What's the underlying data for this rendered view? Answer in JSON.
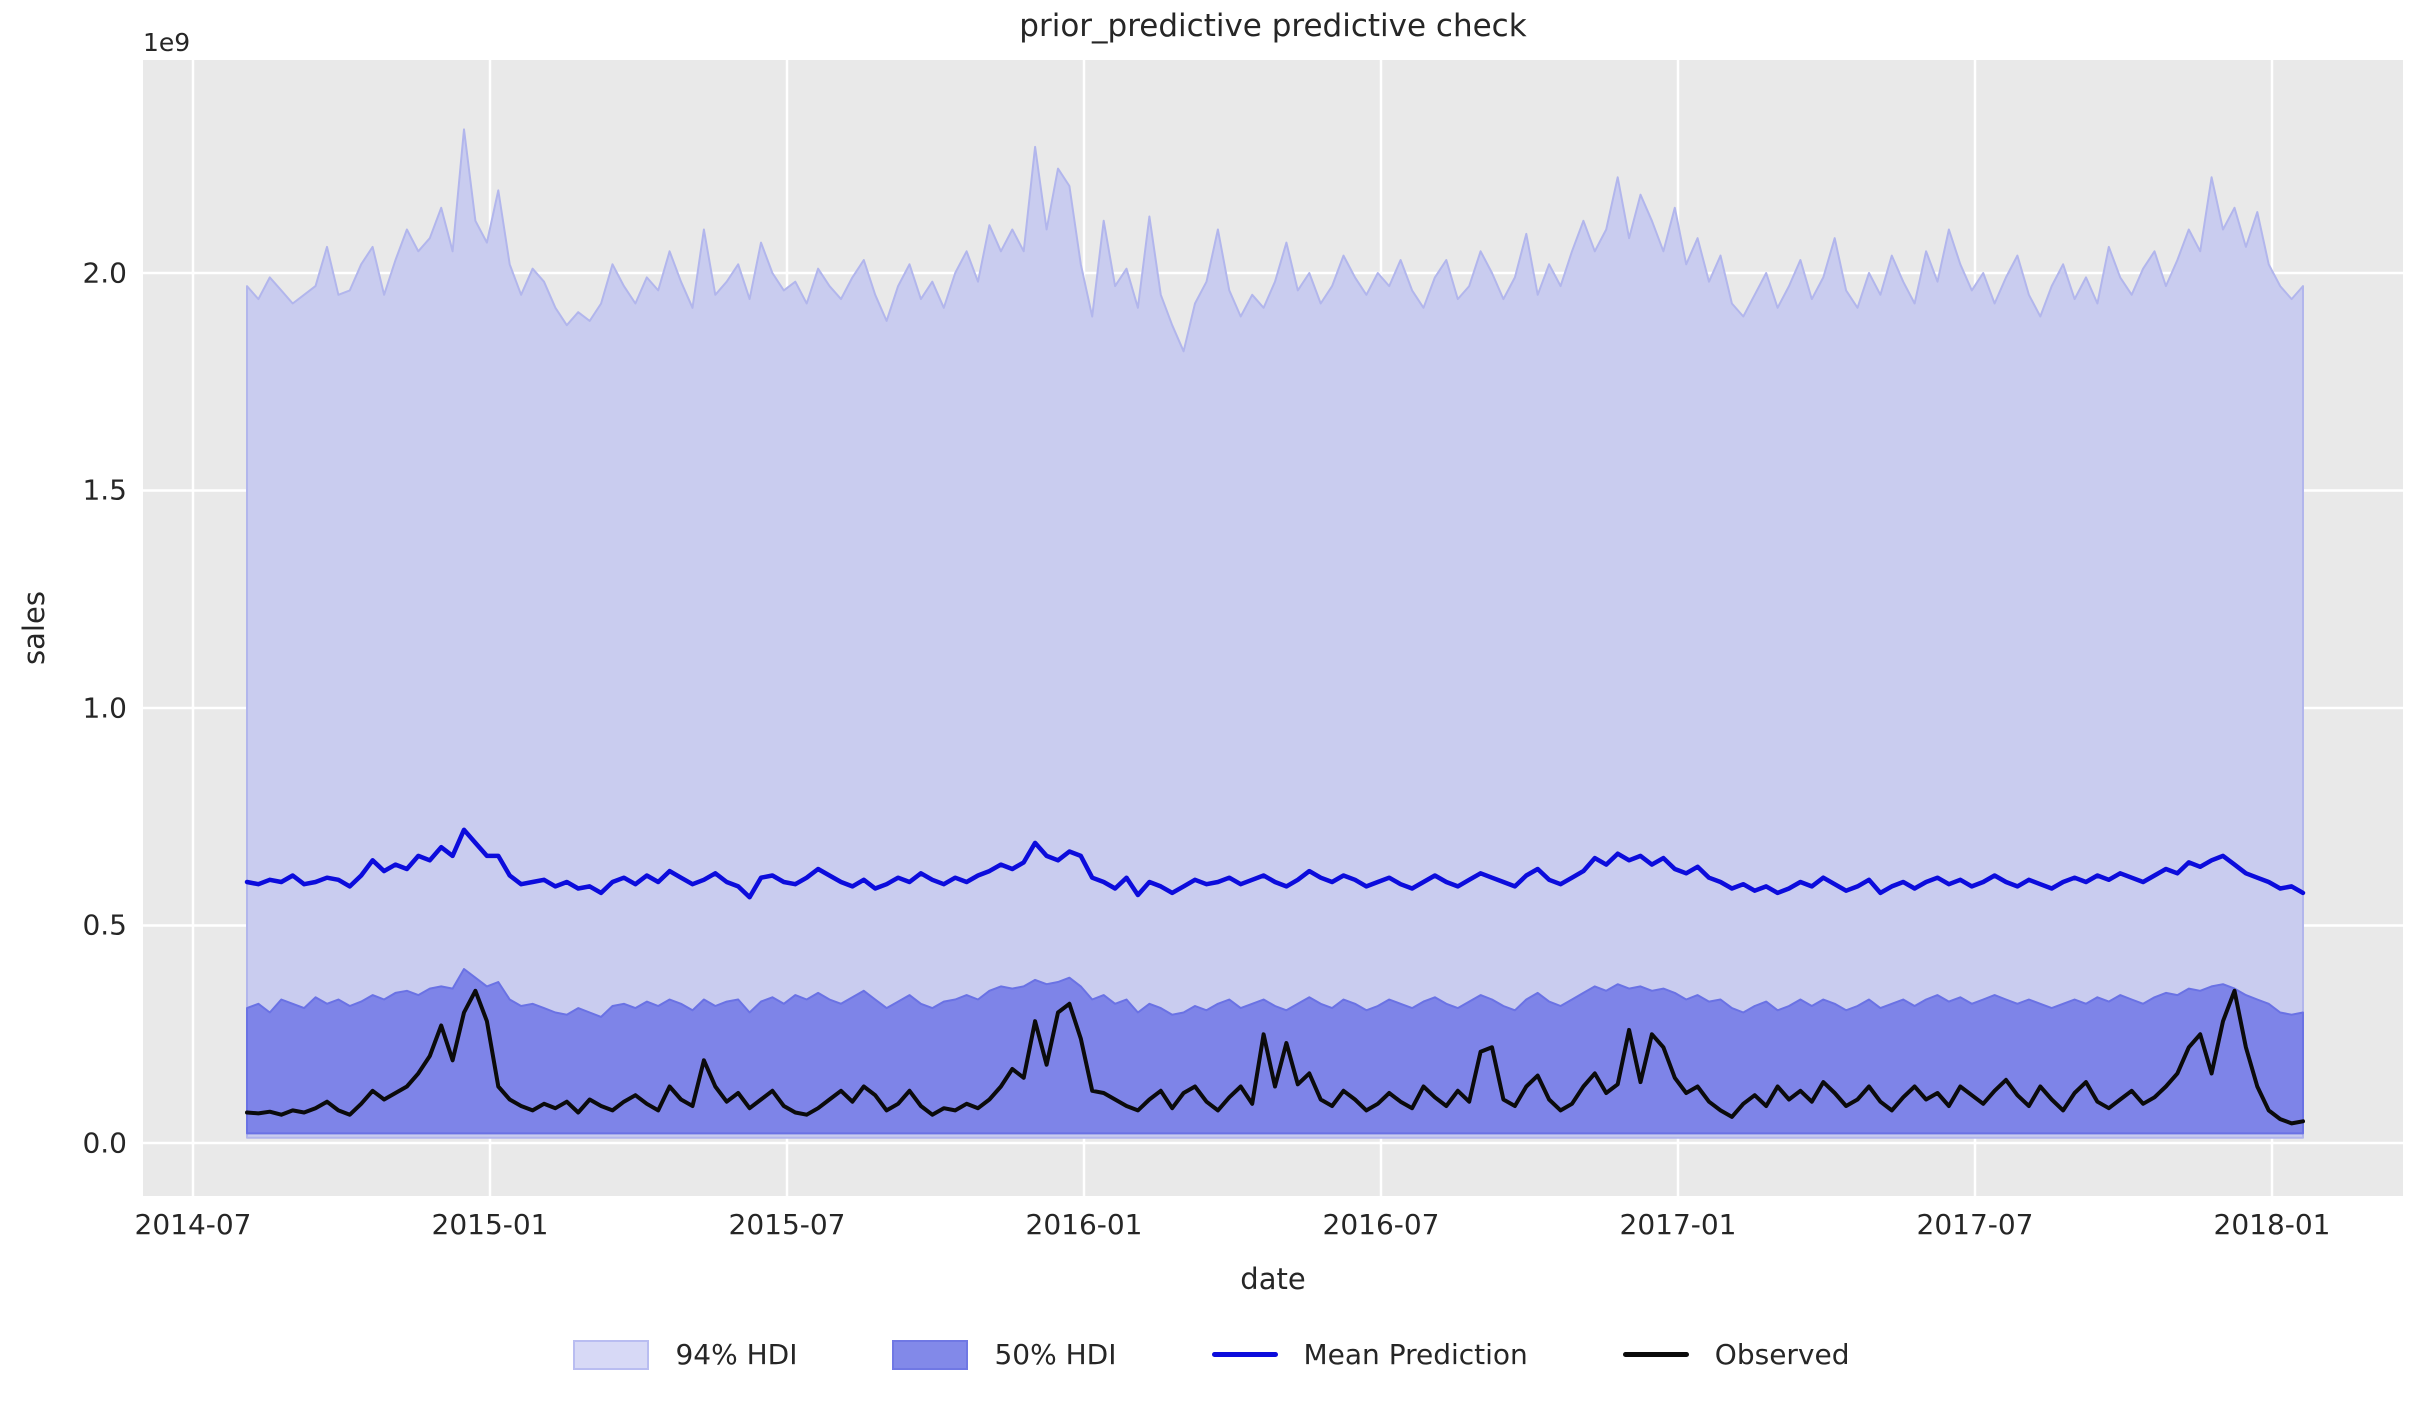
{
  "title": "prior_predictive predictive check",
  "axes": {
    "xlabel": "date",
    "ylabel": "sales",
    "offset_text": "1e9",
    "x_ticks": [
      "2014-07",
      "2015-01",
      "2015-07",
      "2016-01",
      "2016-07",
      "2017-01",
      "2017-07",
      "2018-01"
    ],
    "y_ticks": [
      "0.0",
      "0.5",
      "1.0",
      "1.5",
      "2.0"
    ]
  },
  "legend": {
    "items": [
      {
        "label": "94% HDI",
        "type": "patch",
        "fill": "#d7d9f6",
        "edge": "#b9bdf1"
      },
      {
        "label": "50% HDI",
        "type": "patch",
        "fill": "#8289e9",
        "edge": "#7078e4"
      },
      {
        "label": "Mean Prediction",
        "type": "line",
        "color": "#0c0cdc"
      },
      {
        "label": "Observed",
        "type": "line",
        "color": "#0b0b0b"
      }
    ]
  },
  "colors": {
    "figure_bg": "#ffffff",
    "axes_bg": "#e9e9e9",
    "grid": "#ffffff",
    "hdi94_fill": "#c9ccef",
    "hdi94_edge": "#b2b6ec",
    "hdi50_fill": "#7e84e8",
    "hdi50_edge": "#6a72e4",
    "mean_line": "#0c0cdc",
    "observed_line": "#0b0b0b",
    "text": "#262626"
  },
  "chart_data": {
    "type": "area",
    "title": "prior_predictive predictive check",
    "xlabel": "date",
    "ylabel": "sales",
    "y_unit": "1e9",
    "y_scale_note": "all y values below are in units of 1e9 (billions)",
    "ylim": [
      -0.12,
      2.49
    ],
    "y_tick_values": [
      0.0,
      0.5,
      1.0,
      1.5,
      2.0
    ],
    "x_tick_labels": [
      "2014-07",
      "2015-01",
      "2015-07",
      "2016-01",
      "2016-07",
      "2017-01",
      "2017-07",
      "2018-01"
    ],
    "x_start_date": "2014-08-03",
    "x_step_days": 7,
    "n_points": 181,
    "x_end_date": "2018-01-14",
    "legend_position": "bottom center",
    "grid": true,
    "series": [
      {
        "name": "94% HDI",
        "type": "band",
        "lower_constant": 0.012,
        "upper": [
          1.97,
          1.94,
          1.99,
          1.96,
          1.93,
          1.95,
          1.97,
          2.06,
          1.95,
          1.96,
          2.02,
          2.06,
          1.95,
          2.03,
          2.1,
          2.05,
          2.08,
          2.15,
          2.05,
          2.33,
          2.12,
          2.07,
          2.19,
          2.02,
          1.95,
          2.01,
          1.98,
          1.92,
          1.88,
          1.91,
          1.89,
          1.93,
          2.02,
          1.97,
          1.93,
          1.99,
          1.96,
          2.05,
          1.98,
          1.92,
          2.1,
          1.95,
          1.98,
          2.02,
          1.94,
          2.07,
          2.0,
          1.96,
          1.98,
          1.93,
          2.01,
          1.97,
          1.94,
          1.99,
          2.03,
          1.95,
          1.89,
          1.97,
          2.02,
          1.94,
          1.98,
          1.92,
          2.0,
          2.05,
          1.98,
          2.11,
          2.05,
          2.1,
          2.05,
          2.29,
          2.1,
          2.24,
          2.2,
          2.02,
          1.9,
          2.12,
          1.97,
          2.01,
          1.92,
          2.13,
          1.95,
          1.88,
          1.82,
          1.93,
          1.98,
          2.1,
          1.96,
          1.9,
          1.95,
          1.92,
          1.98,
          2.07,
          1.96,
          2.0,
          1.93,
          1.97,
          2.04,
          1.99,
          1.95,
          2.0,
          1.97,
          2.03,
          1.96,
          1.92,
          1.99,
          2.03,
          1.94,
          1.97,
          2.05,
          2.0,
          1.94,
          1.99,
          2.09,
          1.95,
          2.02,
          1.97,
          2.05,
          2.12,
          2.05,
          2.1,
          2.22,
          2.08,
          2.18,
          2.12,
          2.05,
          2.15,
          2.02,
          2.08,
          1.98,
          2.04,
          1.93,
          1.9,
          1.95,
          2.0,
          1.92,
          1.97,
          2.03,
          1.94,
          1.99,
          2.08,
          1.96,
          1.92,
          2.0,
          1.95,
          2.04,
          1.98,
          1.93,
          2.05,
          1.98,
          2.1,
          2.02,
          1.96,
          2.0,
          1.93,
          1.99,
          2.04,
          1.95,
          1.9,
          1.97,
          2.02,
          1.94,
          1.99,
          1.93,
          2.06,
          1.99,
          1.95,
          2.01,
          2.05,
          1.97,
          2.03,
          2.1,
          2.05,
          2.22,
          2.1,
          2.15,
          2.06,
          2.14,
          2.02,
          1.97,
          1.94,
          1.97
        ]
      },
      {
        "name": "50% HDI",
        "type": "band",
        "lower_constant": 0.022,
        "upper": [
          0.31,
          0.32,
          0.3,
          0.33,
          0.32,
          0.31,
          0.335,
          0.32,
          0.33,
          0.315,
          0.325,
          0.34,
          0.33,
          0.345,
          0.35,
          0.34,
          0.355,
          0.36,
          0.355,
          0.4,
          0.38,
          0.36,
          0.37,
          0.33,
          0.315,
          0.32,
          0.31,
          0.3,
          0.295,
          0.31,
          0.3,
          0.29,
          0.315,
          0.32,
          0.31,
          0.325,
          0.315,
          0.33,
          0.32,
          0.305,
          0.33,
          0.315,
          0.325,
          0.33,
          0.3,
          0.325,
          0.335,
          0.32,
          0.34,
          0.33,
          0.345,
          0.33,
          0.32,
          0.335,
          0.35,
          0.33,
          0.31,
          0.325,
          0.34,
          0.32,
          0.31,
          0.325,
          0.33,
          0.34,
          0.33,
          0.35,
          0.36,
          0.355,
          0.36,
          0.375,
          0.365,
          0.37,
          0.38,
          0.36,
          0.33,
          0.34,
          0.32,
          0.33,
          0.3,
          0.32,
          0.31,
          0.295,
          0.3,
          0.315,
          0.305,
          0.32,
          0.33,
          0.31,
          0.32,
          0.33,
          0.315,
          0.305,
          0.32,
          0.335,
          0.32,
          0.31,
          0.33,
          0.32,
          0.305,
          0.315,
          0.33,
          0.32,
          0.31,
          0.325,
          0.335,
          0.32,
          0.31,
          0.325,
          0.34,
          0.33,
          0.315,
          0.305,
          0.33,
          0.345,
          0.325,
          0.315,
          0.33,
          0.345,
          0.36,
          0.35,
          0.365,
          0.355,
          0.36,
          0.35,
          0.355,
          0.345,
          0.33,
          0.34,
          0.325,
          0.33,
          0.31,
          0.3,
          0.315,
          0.325,
          0.305,
          0.315,
          0.33,
          0.315,
          0.33,
          0.32,
          0.305,
          0.315,
          0.33,
          0.31,
          0.32,
          0.33,
          0.315,
          0.33,
          0.34,
          0.325,
          0.335,
          0.32,
          0.33,
          0.34,
          0.33,
          0.32,
          0.33,
          0.32,
          0.31,
          0.32,
          0.33,
          0.32,
          0.335,
          0.325,
          0.34,
          0.33,
          0.32,
          0.335,
          0.345,
          0.34,
          0.355,
          0.35,
          0.36,
          0.365,
          0.355,
          0.34,
          0.33,
          0.32,
          0.3,
          0.295,
          0.3
        ]
      },
      {
        "name": "Mean Prediction",
        "type": "line",
        "values": [
          0.6,
          0.595,
          0.605,
          0.6,
          0.615,
          0.595,
          0.6,
          0.61,
          0.605,
          0.59,
          0.615,
          0.65,
          0.625,
          0.64,
          0.63,
          0.66,
          0.65,
          0.68,
          0.66,
          0.72,
          0.69,
          0.66,
          0.66,
          0.615,
          0.595,
          0.6,
          0.605,
          0.59,
          0.6,
          0.585,
          0.59,
          0.575,
          0.6,
          0.61,
          0.595,
          0.615,
          0.6,
          0.625,
          0.61,
          0.595,
          0.605,
          0.62,
          0.6,
          0.59,
          0.565,
          0.61,
          0.615,
          0.6,
          0.595,
          0.61,
          0.63,
          0.615,
          0.6,
          0.59,
          0.605,
          0.585,
          0.595,
          0.61,
          0.6,
          0.62,
          0.605,
          0.595,
          0.61,
          0.6,
          0.615,
          0.625,
          0.64,
          0.63,
          0.645,
          0.69,
          0.66,
          0.65,
          0.67,
          0.66,
          0.61,
          0.6,
          0.585,
          0.61,
          0.57,
          0.6,
          0.59,
          0.575,
          0.59,
          0.605,
          0.595,
          0.6,
          0.61,
          0.595,
          0.605,
          0.615,
          0.6,
          0.59,
          0.605,
          0.625,
          0.61,
          0.6,
          0.615,
          0.605,
          0.59,
          0.6,
          0.61,
          0.595,
          0.585,
          0.6,
          0.615,
          0.6,
          0.59,
          0.605,
          0.62,
          0.61,
          0.6,
          0.59,
          0.615,
          0.63,
          0.605,
          0.595,
          0.61,
          0.625,
          0.655,
          0.64,
          0.665,
          0.65,
          0.66,
          0.64,
          0.655,
          0.63,
          0.62,
          0.635,
          0.61,
          0.6,
          0.585,
          0.595,
          0.58,
          0.59,
          0.575,
          0.585,
          0.6,
          0.59,
          0.61,
          0.595,
          0.58,
          0.59,
          0.605,
          0.575,
          0.59,
          0.6,
          0.585,
          0.6,
          0.61,
          0.595,
          0.605,
          0.59,
          0.6,
          0.615,
          0.6,
          0.59,
          0.605,
          0.595,
          0.585,
          0.6,
          0.61,
          0.6,
          0.615,
          0.605,
          0.62,
          0.61,
          0.6,
          0.615,
          0.63,
          0.62,
          0.645,
          0.635,
          0.65,
          0.66,
          0.64,
          0.62,
          0.61,
          0.6,
          0.585,
          0.59,
          0.575
        ]
      },
      {
        "name": "Observed",
        "type": "line",
        "values": [
          0.07,
          0.068,
          0.072,
          0.065,
          0.075,
          0.07,
          0.08,
          0.095,
          0.075,
          0.065,
          0.09,
          0.12,
          0.1,
          0.115,
          0.13,
          0.16,
          0.2,
          0.27,
          0.19,
          0.3,
          0.35,
          0.28,
          0.13,
          0.1,
          0.085,
          0.075,
          0.09,
          0.08,
          0.095,
          0.07,
          0.1,
          0.085,
          0.075,
          0.095,
          0.11,
          0.09,
          0.075,
          0.13,
          0.1,
          0.085,
          0.19,
          0.13,
          0.095,
          0.115,
          0.08,
          0.1,
          0.12,
          0.085,
          0.07,
          0.065,
          0.08,
          0.1,
          0.12,
          0.095,
          0.13,
          0.11,
          0.075,
          0.09,
          0.12,
          0.085,
          0.065,
          0.08,
          0.075,
          0.09,
          0.08,
          0.1,
          0.13,
          0.17,
          0.15,
          0.28,
          0.18,
          0.3,
          0.32,
          0.24,
          0.12,
          0.115,
          0.1,
          0.085,
          0.075,
          0.1,
          0.12,
          0.08,
          0.115,
          0.13,
          0.095,
          0.075,
          0.105,
          0.13,
          0.09,
          0.25,
          0.13,
          0.23,
          0.135,
          0.16,
          0.1,
          0.085,
          0.12,
          0.1,
          0.075,
          0.09,
          0.115,
          0.095,
          0.08,
          0.13,
          0.105,
          0.085,
          0.12,
          0.095,
          0.21,
          0.22,
          0.1,
          0.085,
          0.13,
          0.155,
          0.1,
          0.075,
          0.09,
          0.13,
          0.16,
          0.115,
          0.135,
          0.26,
          0.14,
          0.25,
          0.22,
          0.15,
          0.115,
          0.13,
          0.095,
          0.075,
          0.06,
          0.09,
          0.11,
          0.085,
          0.13,
          0.1,
          0.12,
          0.095,
          0.14,
          0.115,
          0.085,
          0.1,
          0.13,
          0.095,
          0.075,
          0.105,
          0.13,
          0.1,
          0.115,
          0.085,
          0.13,
          0.11,
          0.09,
          0.12,
          0.145,
          0.11,
          0.085,
          0.13,
          0.1,
          0.075,
          0.115,
          0.14,
          0.095,
          0.08,
          0.1,
          0.12,
          0.09,
          0.105,
          0.13,
          0.16,
          0.22,
          0.25,
          0.16,
          0.28,
          0.35,
          0.22,
          0.13,
          0.075,
          0.055,
          0.045,
          0.05
        ]
      }
    ]
  }
}
